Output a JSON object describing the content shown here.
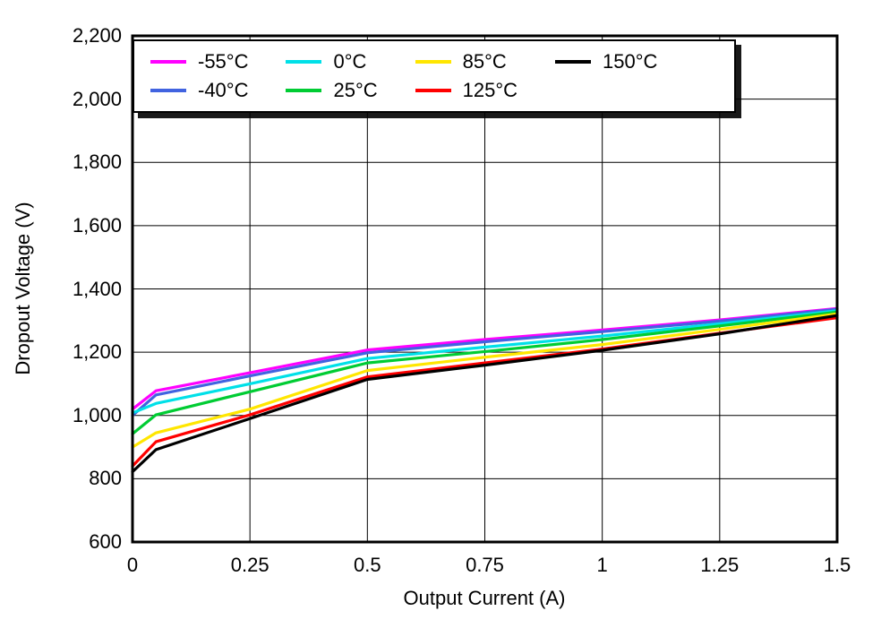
{
  "chart_data": {
    "type": "line",
    "title": "",
    "xlabel": "Output Current (A)",
    "ylabel": "Dropout Voltage (V)",
    "xlim": [
      0,
      1.5
    ],
    "ylim": [
      600,
      2200
    ],
    "grid": true,
    "legend_position": "top",
    "xticks": {
      "values": [
        0,
        0.25,
        0.5,
        0.75,
        1,
        1.25,
        1.5
      ],
      "labels": [
        "0",
        "0.25",
        "0.5",
        "0.75",
        "1",
        "1.25",
        "1.5"
      ]
    },
    "yticks": {
      "values": [
        600,
        800,
        1000,
        1200,
        1400,
        1600,
        1800,
        2000,
        2200
      ],
      "labels": [
        "600",
        "800",
        "1,000",
        "1,200",
        "1,400",
        "1,600",
        "1,800",
        "2,000",
        "2,200"
      ]
    },
    "x": [
      0,
      0.05,
      0.25,
      0.5,
      0.75,
      1.0,
      1.25,
      1.5
    ],
    "series": [
      {
        "name": "-55°C",
        "color": "#FF00FF",
        "values": [
          1020,
          1078,
          1135,
          1207,
          1240,
          1270,
          1302,
          1338
        ]
      },
      {
        "name": "-40°C",
        "color": "#4163E0",
        "values": [
          1000,
          1065,
          1125,
          1198,
          1233,
          1265,
          1298,
          1336
        ]
      },
      {
        "name": "0°C",
        "color": "#00E0E8",
        "values": [
          1008,
          1038,
          1100,
          1180,
          1216,
          1251,
          1290,
          1331
        ]
      },
      {
        "name": "25°C",
        "color": "#00CC33",
        "values": [
          942,
          1002,
          1075,
          1166,
          1202,
          1240,
          1283,
          1327
        ]
      },
      {
        "name": "85°C",
        "color": "#FFE600",
        "values": [
          900,
          945,
          1020,
          1142,
          1184,
          1224,
          1272,
          1321
        ]
      },
      {
        "name": "125°C",
        "color": "#FF0000",
        "values": [
          840,
          917,
          1002,
          1122,
          1166,
          1210,
          1260,
          1309
        ]
      },
      {
        "name": "150°C",
        "color": "#000000",
        "values": [
          822,
          892,
          990,
          1114,
          1159,
          1206,
          1258,
          1316
        ]
      }
    ],
    "line_width": 3.2,
    "axis_color": "#000000",
    "grid_color": "#000000",
    "background_color": "#FFFFFF"
  }
}
